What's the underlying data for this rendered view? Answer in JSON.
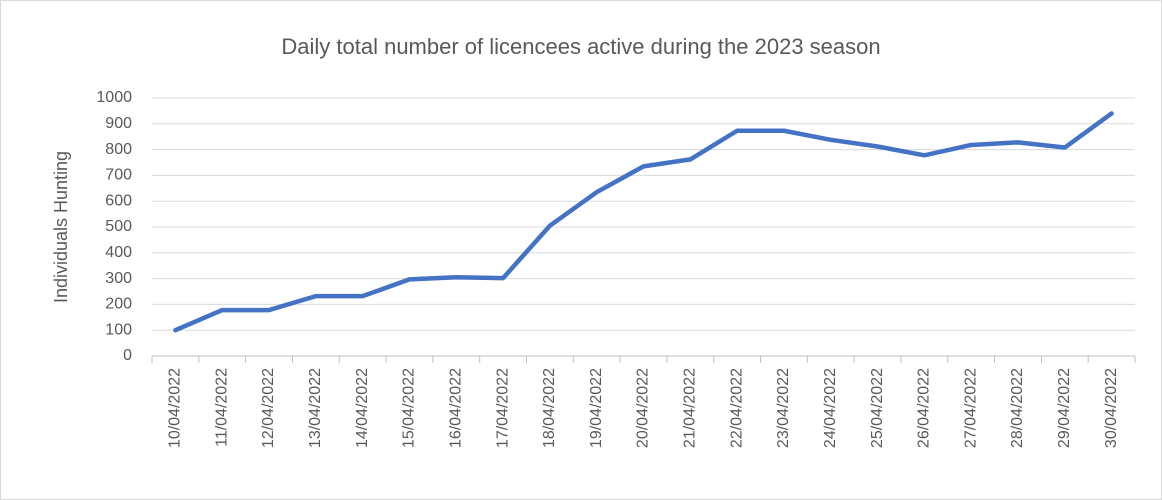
{
  "chart_data": {
    "type": "line",
    "title": "Daily total number of licencees active during the 2023 season",
    "y_label": "Individuals Hunting",
    "categories": [
      "10/04/2022",
      "11/04/2022",
      "12/04/2022",
      "13/04/2022",
      "14/04/2022",
      "15/04/2022",
      "16/04/2022",
      "17/04/2022",
      "18/04/2022",
      "19/04/2022",
      "20/04/2022",
      "21/04/2022",
      "22/04/2022",
      "23/04/2022",
      "24/04/2022",
      "25/04/2022",
      "26/04/2022",
      "27/04/2022",
      "28/04/2022",
      "29/04/2022",
      "30/04/2022"
    ],
    "values": [
      100,
      178,
      178,
      232,
      232,
      297,
      305,
      302,
      505,
      635,
      735,
      762,
      873,
      873,
      838,
      812,
      778,
      818,
      828,
      808,
      940
    ],
    "color": "#4472c4",
    "ylim": [
      0,
      1000
    ],
    "yticks": [
      0,
      100,
      200,
      300,
      400,
      500,
      600,
      700,
      800,
      900,
      1000
    ],
    "grid": true
  }
}
